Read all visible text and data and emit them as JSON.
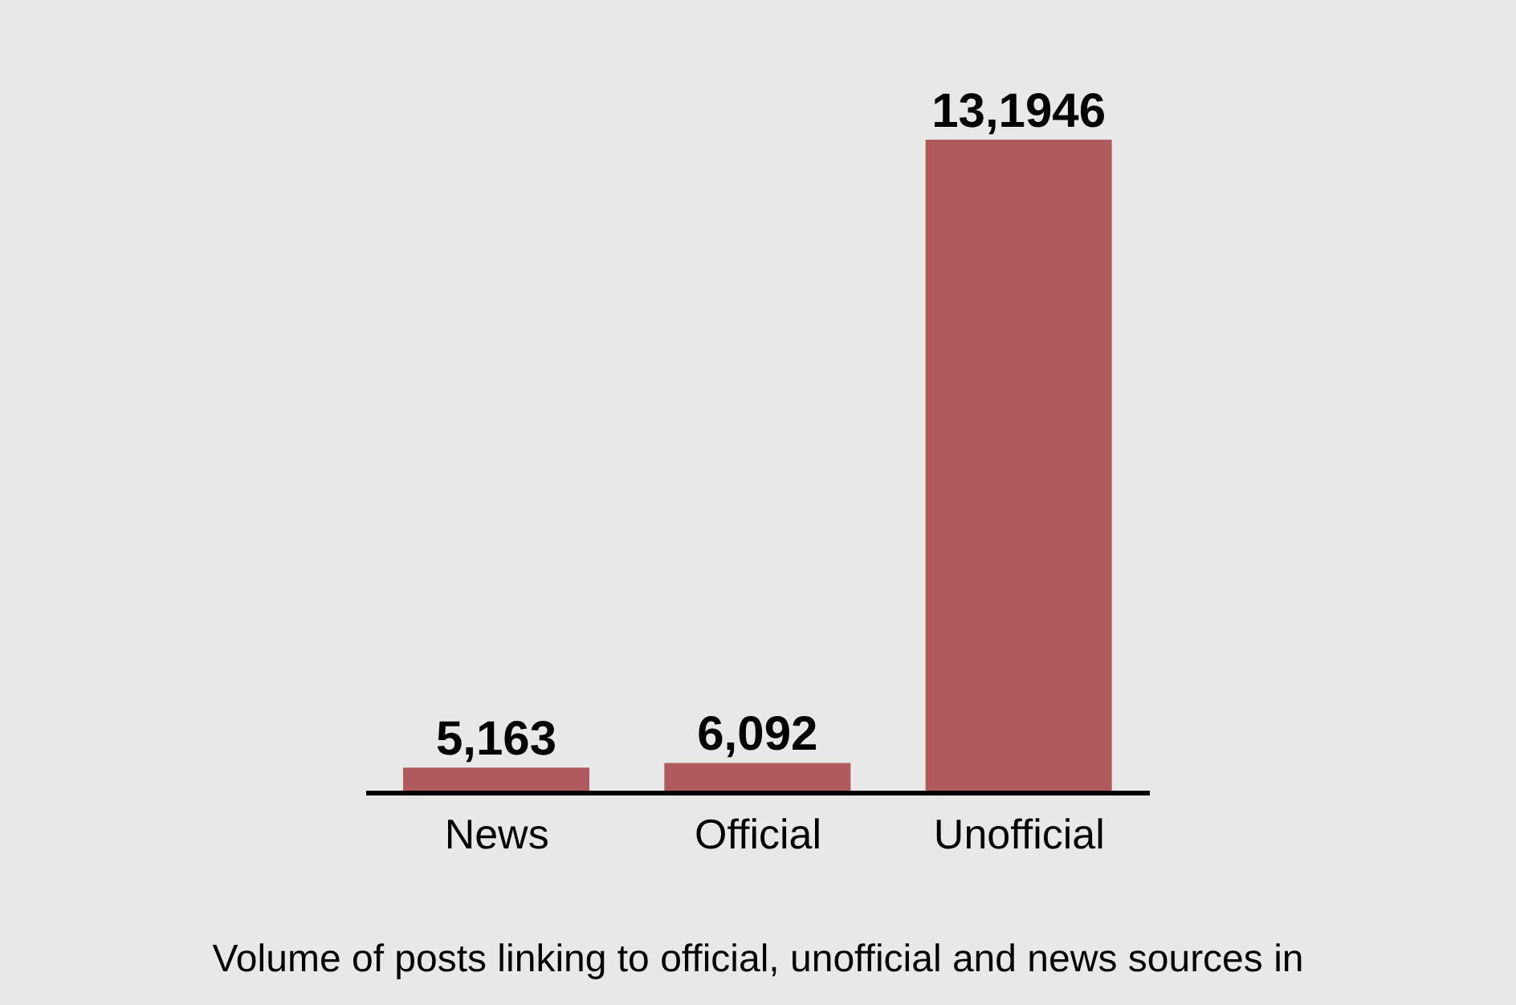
{
  "chart_data": {
    "type": "bar",
    "categories": [
      "News",
      "Official",
      "Unofficial"
    ],
    "values": [
      5163,
      6092,
      131946
    ],
    "color": "#af5b5d",
    "value_labels": [
      "5,163",
      "6,092",
      "13,1946"
    ],
    "annotations": [
      "Volume of posts linking to official, unofficial and news sources in"
    ]
  }
}
